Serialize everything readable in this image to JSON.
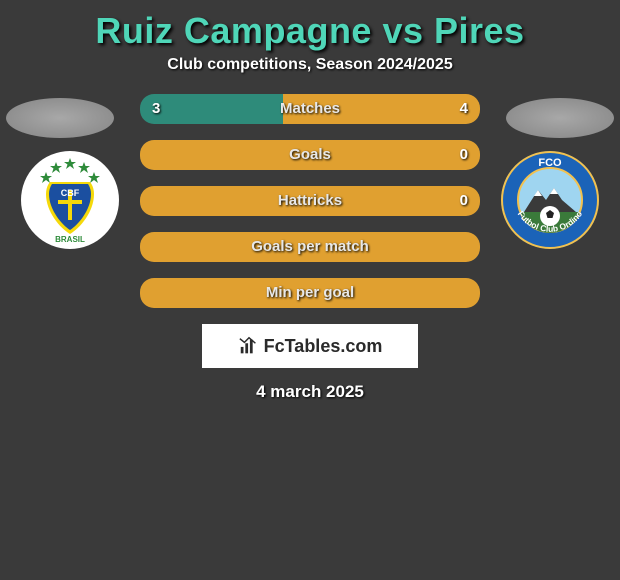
{
  "title": "Ruiz Campagne vs Pires",
  "subtitle": "Club competitions, Season 2024/2025",
  "colors": {
    "background": "#3a3a3a",
    "title": "#4fd6b8",
    "barLeft": "#2e8b7a",
    "barRight": "#e0a030",
    "barEmpty": "#e0a030",
    "text": "#ffffff"
  },
  "bars": [
    {
      "label": "Matches",
      "left": "3",
      "right": "4",
      "leftPct": 42,
      "rightPct": 58,
      "leftColor": "#2e8b7a",
      "rightColor": "#e0a030"
    },
    {
      "label": "Goals",
      "left": "",
      "right": "0",
      "leftPct": 0,
      "rightPct": 100,
      "leftColor": "#2e8b7a",
      "rightColor": "#e0a030"
    },
    {
      "label": "Hattricks",
      "left": "",
      "right": "0",
      "leftPct": 0,
      "rightPct": 100,
      "leftColor": "#2e8b7a",
      "rightColor": "#e0a030"
    },
    {
      "label": "Goals per match",
      "left": "",
      "right": "",
      "leftPct": 0,
      "rightPct": 100,
      "leftColor": "#2e8b7a",
      "rightColor": "#e0a030"
    },
    {
      "label": "Min per goal",
      "left": "",
      "right": "",
      "leftPct": 0,
      "rightPct": 100,
      "leftColor": "#2e8b7a",
      "rightColor": "#e0a030"
    }
  ],
  "footer": {
    "brand": "FcTables.com"
  },
  "date": "4 march 2025",
  "crests": {
    "left": {
      "bg": "#ffffff",
      "shield": "#1b4fa0",
      "accent": "#f5d90a",
      "stars": "#2e8b3a",
      "text": "BRASIL",
      "badge": "CBF"
    },
    "right": {
      "ringOuter": "#1b63b8",
      "ringStroke": "#f2c14e",
      "sky": "#9fd5f0",
      "mountain": "#3a3a3a",
      "ball": "#ffffff",
      "top": "FCO",
      "bottom": "Futbol Club Ordino"
    }
  }
}
